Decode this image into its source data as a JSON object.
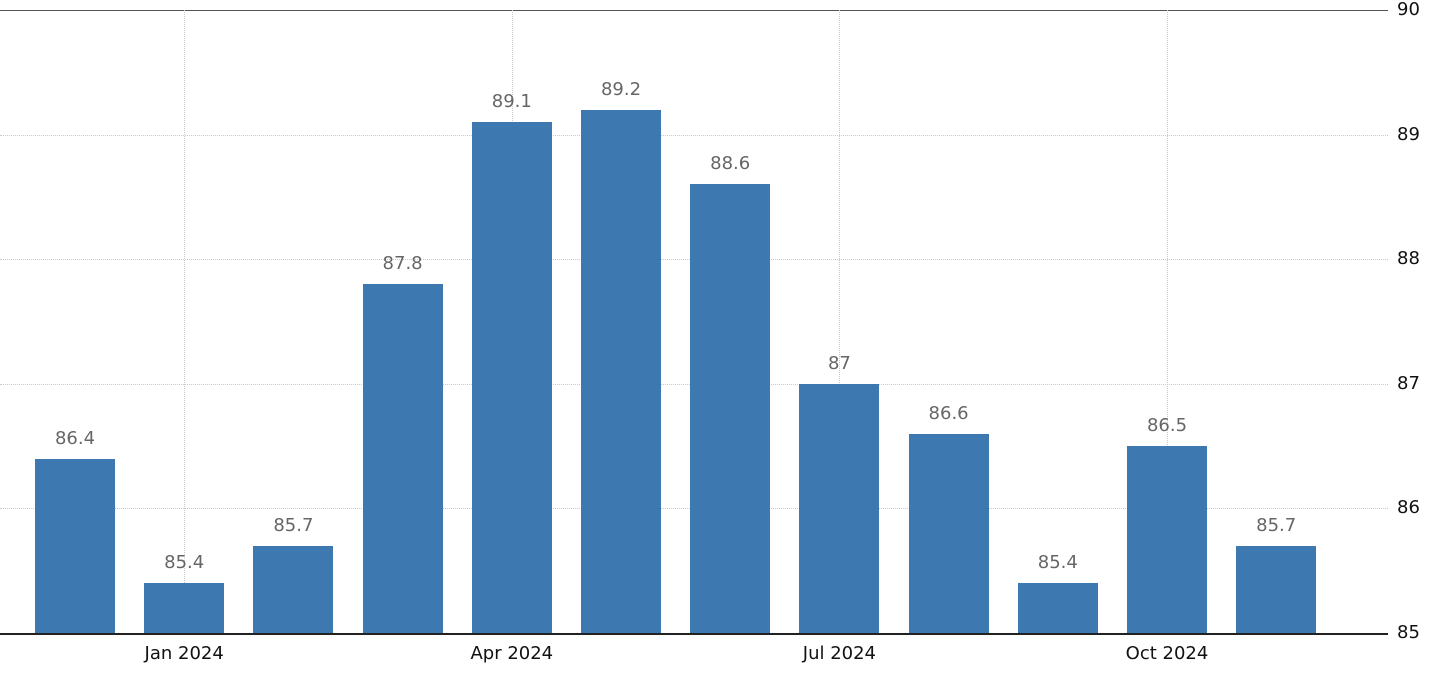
{
  "chart_data": {
    "type": "bar",
    "title": "",
    "xlabel": "",
    "ylabel": "",
    "values": [
      86.4,
      85.4,
      85.7,
      87.8,
      89.1,
      89.2,
      88.6,
      87,
      86.6,
      85.4,
      86.5,
      85.7
    ],
    "value_labels": [
      "86.4",
      "85.4",
      "85.7",
      "87.8",
      "89.1",
      "89.2",
      "88.6",
      "87",
      "86.6",
      "85.4",
      "86.5",
      "85.7"
    ],
    "x_ticks": [
      {
        "index": 1,
        "label": "Jan 2024"
      },
      {
        "index": 4,
        "label": "Apr 2024"
      },
      {
        "index": 7,
        "label": "Jul 2024"
      },
      {
        "index": 10,
        "label": "Oct 2024"
      }
    ],
    "y_ticks": [
      "85",
      "86",
      "87",
      "88",
      "89",
      "90"
    ],
    "ylim": [
      85,
      90
    ],
    "grid": true,
    "legend_position": "none",
    "colors": {
      "bar": "#3d79b0",
      "value_label": "#666666",
      "axis_text": "#111111",
      "gridline": "#c9c9c9",
      "top_line": "#555555",
      "baseline": "#222222",
      "background": "#ffffff"
    }
  }
}
